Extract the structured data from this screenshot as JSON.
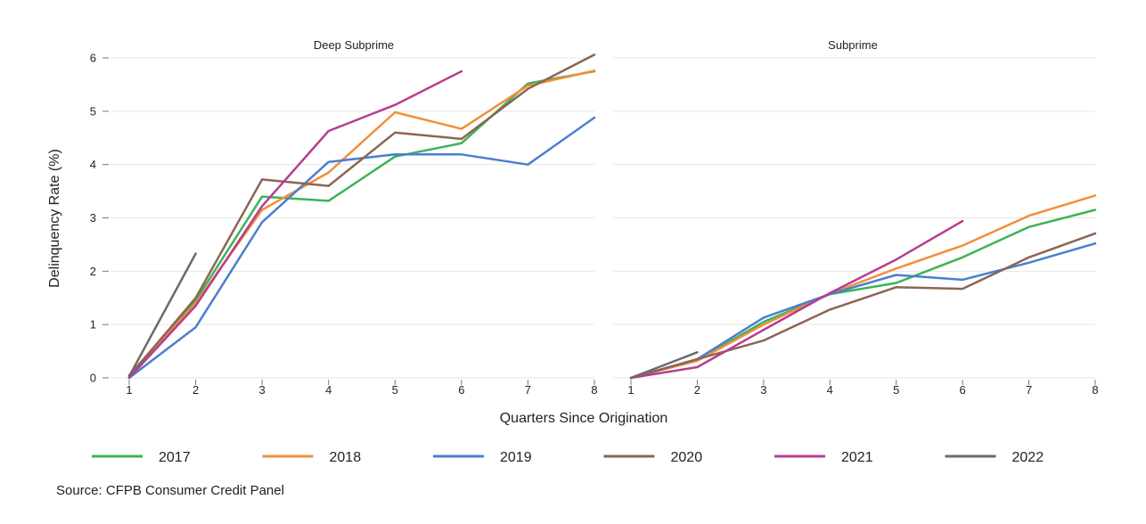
{
  "chart_data": {
    "type": "line",
    "xlabel": "Quarters Since Origination",
    "ylabel": "Delinquency Rate (%)",
    "x": [
      1,
      2,
      3,
      4,
      5,
      6,
      7,
      8
    ],
    "xlim": [
      1,
      8
    ],
    "ylim": [
      0,
      6
    ],
    "yticks": [
      0,
      1,
      2,
      3,
      4,
      5,
      6
    ],
    "grid": true,
    "legend_position": "bottom",
    "source": "Source: CFPB Consumer Credit Panel",
    "legend": [
      {
        "name": "2017",
        "color": "#3cb35a"
      },
      {
        "name": "2018",
        "color": "#f28e3b"
      },
      {
        "name": "2019",
        "color": "#4a7fcf"
      },
      {
        "name": "2020",
        "color": "#8b6653"
      },
      {
        "name": "2021",
        "color": "#b83d90"
      },
      {
        "name": "2022",
        "color": "#6a6a6a"
      }
    ],
    "panels": [
      {
        "title": "Deep Subprime",
        "series": [
          {
            "name": "2017",
            "values": [
              0.05,
              1.45,
              3.4,
              3.32,
              4.15,
              4.4,
              5.52,
              5.75
            ]
          },
          {
            "name": "2018",
            "values": [
              0.02,
              1.4,
              3.15,
              3.85,
              4.98,
              4.67,
              5.48,
              5.76
            ]
          },
          {
            "name": "2019",
            "values": [
              0.0,
              0.95,
              2.92,
              4.05,
              4.19,
              4.19,
              4.0,
              4.88
            ]
          },
          {
            "name": "2020",
            "values": [
              0.03,
              1.5,
              3.72,
              3.6,
              4.6,
              4.48,
              5.42,
              6.06
            ]
          },
          {
            "name": "2021",
            "values": [
              0.0,
              1.35,
              3.22,
              4.63,
              5.12,
              5.75,
              null,
              null
            ]
          },
          {
            "name": "2022",
            "values": [
              0.03,
              2.33,
              null,
              null,
              null,
              null,
              null,
              null
            ]
          }
        ]
      },
      {
        "title": "Subprime",
        "series": [
          {
            "name": "2017",
            "values": [
              0.0,
              0.33,
              1.05,
              1.57,
              1.78,
              2.26,
              2.83,
              3.15
            ]
          },
          {
            "name": "2018",
            "values": [
              0.0,
              0.32,
              1.0,
              1.58,
              2.05,
              2.48,
              3.04,
              3.42
            ]
          },
          {
            "name": "2019",
            "values": [
              0.0,
              0.35,
              1.13,
              1.57,
              1.93,
              1.84,
              2.16,
              2.52
            ]
          },
          {
            "name": "2020",
            "values": [
              0.0,
              0.35,
              0.7,
              1.28,
              1.7,
              1.67,
              2.26,
              2.71
            ]
          },
          {
            "name": "2021",
            "values": [
              0.0,
              0.2,
              0.9,
              1.59,
              2.22,
              2.94,
              null,
              null
            ]
          },
          {
            "name": "2022",
            "values": [
              0.0,
              0.48,
              null,
              null,
              null,
              null,
              null,
              null
            ]
          }
        ]
      }
    ]
  }
}
